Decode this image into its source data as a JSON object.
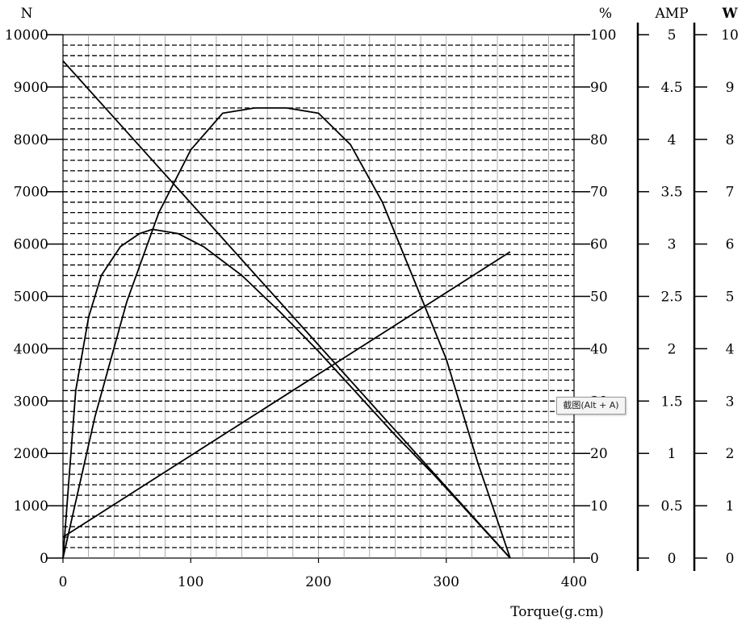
{
  "chart_data": {
    "type": "line",
    "xlabel": "Torque(g.cm)",
    "xlim": [
      0,
      400
    ],
    "x_ticks": [
      0,
      100,
      200,
      300,
      400
    ],
    "axes": {
      "left": {
        "unit": "N",
        "lim": [
          0,
          10000
        ],
        "ticks": [
          0,
          1000,
          2000,
          3000,
          4000,
          5000,
          6000,
          7000,
          8000,
          9000,
          10000
        ]
      },
      "pct": {
        "unit": "%",
        "lim": [
          0,
          100
        ],
        "ticks": [
          0,
          10,
          20,
          30,
          40,
          50,
          60,
          70,
          80,
          90,
          100
        ]
      },
      "amp": {
        "unit": "AMP",
        "lim": [
          0,
          5
        ],
        "ticks": [
          "0",
          "0.5",
          "1",
          "1.5",
          "2",
          "2.5",
          "3",
          "3.5",
          "4",
          "4.5",
          "5"
        ]
      },
      "watt": {
        "unit": "W",
        "lim": [
          0,
          10
        ],
        "ticks": [
          0,
          1,
          2,
          3,
          4,
          5,
          6,
          7,
          8,
          9,
          10
        ]
      }
    },
    "series": [
      {
        "axis": "left",
        "points": [
          [
            0,
            9500
          ],
          [
            350,
            0
          ]
        ]
      },
      {
        "axis": "left",
        "points": [
          [
            0,
            400
          ],
          [
            350,
            5850
          ]
        ]
      },
      {
        "axis": "left",
        "points": [
          [
            0,
            0
          ],
          [
            10,
            3200
          ],
          [
            20,
            4600
          ],
          [
            30,
            5400
          ],
          [
            45,
            5950
          ],
          [
            60,
            6200
          ],
          [
            70,
            6280
          ],
          [
            90,
            6200
          ],
          [
            110,
            5950
          ],
          [
            140,
            5400
          ],
          [
            170,
            4700
          ],
          [
            200,
            3950
          ],
          [
            230,
            3150
          ],
          [
            260,
            2350
          ],
          [
            290,
            1600
          ],
          [
            320,
            800
          ],
          [
            350,
            0
          ]
        ]
      },
      {
        "axis": "left",
        "points": [
          [
            0,
            0
          ],
          [
            25,
            2700
          ],
          [
            50,
            4900
          ],
          [
            75,
            6600
          ],
          [
            100,
            7800
          ],
          [
            125,
            8500
          ],
          [
            150,
            8600
          ],
          [
            175,
            8600
          ],
          [
            200,
            8500
          ],
          [
            225,
            7900
          ],
          [
            250,
            6800
          ],
          [
            275,
            5300
          ],
          [
            300,
            3800
          ],
          [
            325,
            1800
          ],
          [
            350,
            0
          ]
        ]
      }
    ]
  },
  "tooltip": {
    "text": "截图(Alt + A)"
  }
}
